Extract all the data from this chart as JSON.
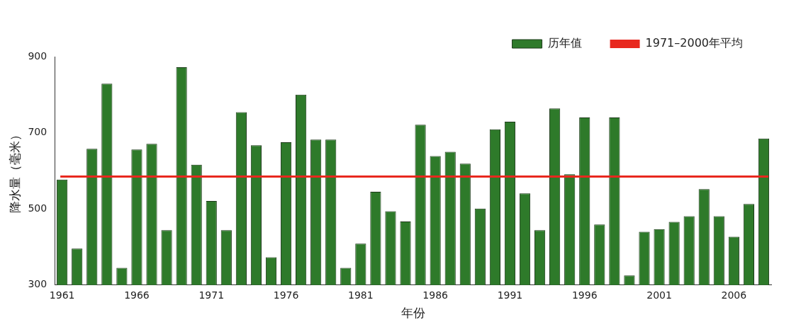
{
  "chart_data": {
    "type": "bar",
    "xlabel": "年份",
    "ylabel": "降水量（毫米）",
    "categories": [
      "1961",
      null,
      null,
      null,
      null,
      "1966",
      null,
      null,
      null,
      null,
      "1971",
      null,
      null,
      null,
      null,
      "1976",
      null,
      null,
      null,
      null,
      "1981",
      null,
      null,
      null,
      null,
      "1986",
      null,
      null,
      null,
      null,
      "1991",
      null,
      null,
      null,
      null,
      "1996",
      null,
      null,
      null,
      null,
      "2001",
      null,
      null,
      null,
      null,
      "2006",
      null,
      null
    ],
    "series": [
      {
        "name": "历年值",
        "color": "#2e7a2a",
        "values": [
          577,
          396,
          658,
          829,
          345,
          656,
          671,
          444,
          872,
          616,
          521,
          444,
          754,
          667,
          373,
          675,
          800,
          682,
          682,
          345,
          409,
          545,
          494,
          467,
          721,
          639,
          650,
          619,
          501,
          709,
          729,
          541,
          444,
          764,
          591,
          740,
          459,
          740,
          325,
          440,
          447,
          466,
          481,
          552,
          481,
          427,
          513,
          685
        ]
      }
    ],
    "ref_lines": [
      {
        "axis": "y",
        "value": 585,
        "label": "1971–2000年平均",
        "color": "#e8281e"
      }
    ],
    "ylim": [
      300,
      900
    ],
    "yticks": [
      300,
      500,
      700,
      900
    ],
    "grid": false,
    "legend": "top right"
  }
}
